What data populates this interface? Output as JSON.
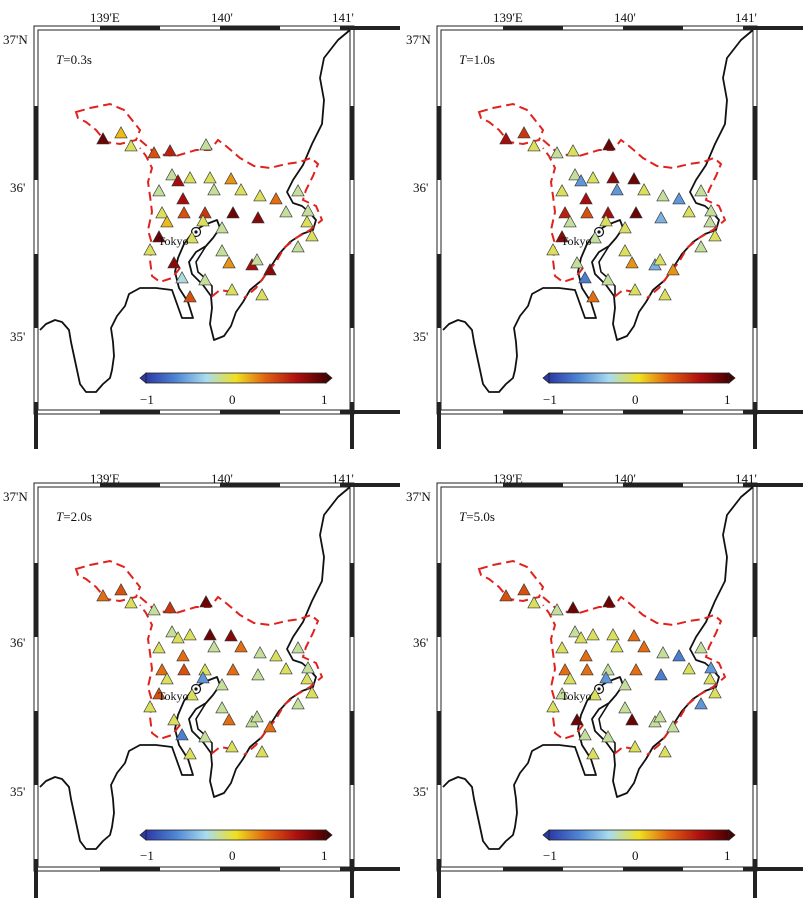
{
  "axis_labels": {
    "top_lon": [
      "139'E",
      "140'",
      "141'"
    ],
    "left_lat": [
      "37'N",
      "36'",
      "35'"
    ]
  },
  "city_label": "Tokyo",
  "colorbar": {
    "ticks": [
      "−1",
      "0",
      "1"
    ],
    "colors": [
      "#2b3aa8",
      "#4f86d4",
      "#a8dcef",
      "#f0e020",
      "#e06010",
      "#b01010",
      "#4a0000"
    ]
  },
  "colors": {
    "boundary": "#e0221e",
    "coast": "#111111",
    "frame": "#222222"
  },
  "panels": [
    {
      "period_var": "T",
      "period_value": "=0.3s"
    },
    {
      "period_var": "T",
      "period_value": "=1.0s"
    },
    {
      "period_var": "T",
      "period_value": "=2.0s"
    },
    {
      "period_var": "T",
      "period_value": "=5.0s"
    }
  ],
  "station_values": [
    [
      0.9,
      0.1,
      -0.1,
      0.4,
      0.6,
      -0.2,
      -0.1,
      -0.2,
      0.2,
      0.5,
      0.9,
      -0.1,
      -0.2,
      -0.2,
      0.7,
      0.7,
      0.4,
      -0.1,
      0.1,
      0.9,
      -0.1,
      -0.2,
      0.2,
      -0.1,
      0.8,
      0.3,
      -0.2,
      -0.2,
      -0.1,
      -0.1,
      0.8,
      -0.3,
      -0.2,
      0.4,
      -0.1,
      -0.1,
      0.7,
      -0.2,
      -0.1,
      0.8,
      -0.2,
      -0.1,
      -0.2,
      -0.1,
      -0.2
    ],
    [
      0.7,
      0.5,
      -0.1,
      -0.2,
      -0.1,
      0.9,
      0.8,
      -0.6,
      0.9,
      0.7,
      0.9,
      -0.1,
      -0.2,
      -0.1,
      0.7,
      -0.6,
      0.4,
      0.6,
      -0.2,
      0.8,
      -0.1,
      -0.1,
      0.2,
      -0.2,
      -0.5,
      -0.6,
      -0.2,
      -0.1,
      -0.1,
      -0.2,
      -0.2,
      -0.7,
      -0.2,
      0.3,
      -0.1,
      -0.1,
      -0.5,
      -0.2,
      -0.1,
      0.2,
      -0.1,
      -0.2,
      -0.1,
      -0.1,
      -0.2
    ],
    [
      0.3,
      0.4,
      -0.1,
      -0.2,
      0.5,
      0.9,
      0.9,
      -0.2,
      0.8,
      -0.1,
      0.3,
      -0.1,
      -0.2,
      -0.1,
      0.3,
      -0.1,
      0.4,
      0.3,
      -0.1,
      0.4,
      -0.6,
      -0.2,
      0.3,
      -0.1,
      -0.2,
      -0.1,
      -0.2,
      -0.1,
      0.3,
      -0.2,
      -0.1,
      -0.7,
      -0.2,
      -0.1,
      -0.1,
      -0.1,
      -0.2,
      -0.2,
      -0.1,
      0.3,
      -0.2,
      -0.1,
      -0.2,
      -0.1,
      -0.2
    ],
    [
      0.4,
      0.4,
      -0.1,
      -0.2,
      0.9,
      0.9,
      -0.1,
      -0.1,
      0.3,
      -0.2,
      0.3,
      -0.1,
      -0.2,
      -0.1,
      0.3,
      -0.1,
      0.3,
      0.3,
      -0.1,
      -0.2,
      -0.6,
      -0.2,
      0.9,
      -0.1,
      -0.7,
      -0.7,
      -0.2,
      -0.1,
      0.3,
      -0.2,
      0.9,
      -0.2,
      -0.2,
      -0.1,
      -0.1,
      -0.1,
      -0.2,
      -0.6,
      -0.1,
      -0.2,
      -0.2,
      -0.1,
      -0.2,
      -0.1,
      -0.6
    ]
  ]
}
